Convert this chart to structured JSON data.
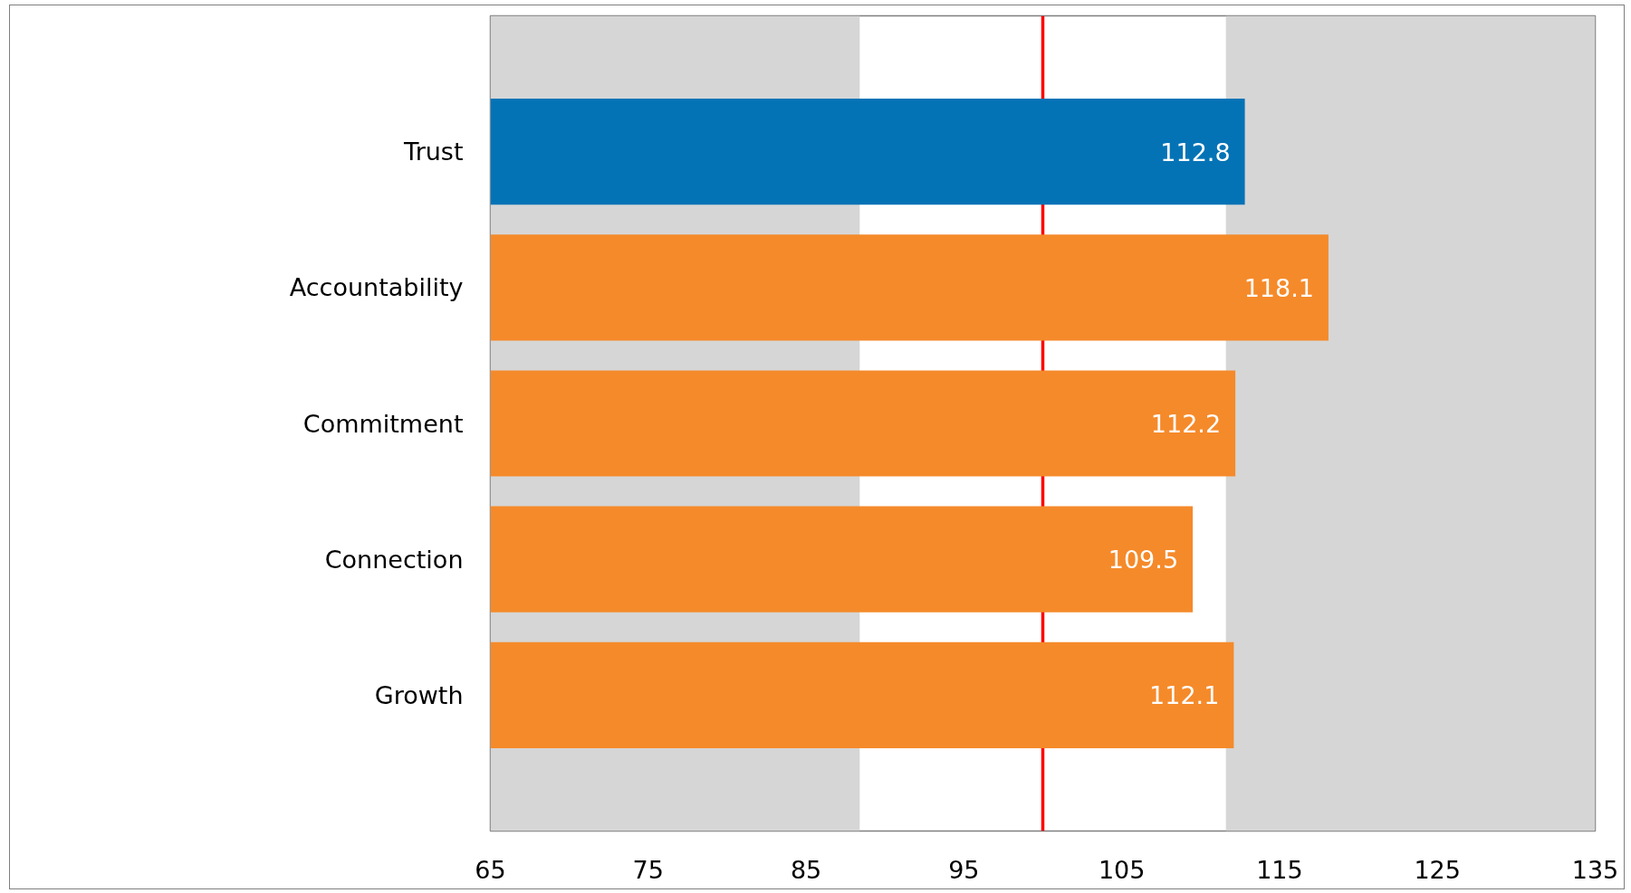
{
  "chart_data": {
    "type": "bar",
    "orientation": "horizontal",
    "categories": [
      "Trust",
      "Accountability",
      "Commitment",
      "Connection",
      "Growth"
    ],
    "values": [
      112.8,
      118.1,
      112.2,
      109.5,
      112.1
    ],
    "colors": [
      "#0473b6",
      "#f58a2a",
      "#f58a2a",
      "#f58a2a",
      "#f58a2a"
    ],
    "xlim": [
      65,
      135
    ],
    "xticks": [
      65,
      75,
      85,
      95,
      105,
      115,
      125,
      135
    ],
    "data_labels": true,
    "ref_lines": [
      {
        "axis": "x",
        "value": 100,
        "color": "#ff0000"
      }
    ],
    "bands": [
      {
        "axis": "x",
        "from": 65,
        "to": 88.4,
        "color": "#d6d6d6"
      },
      {
        "axis": "x",
        "from": 111.6,
        "to": 135,
        "color": "#d6d6d6"
      }
    ]
  }
}
